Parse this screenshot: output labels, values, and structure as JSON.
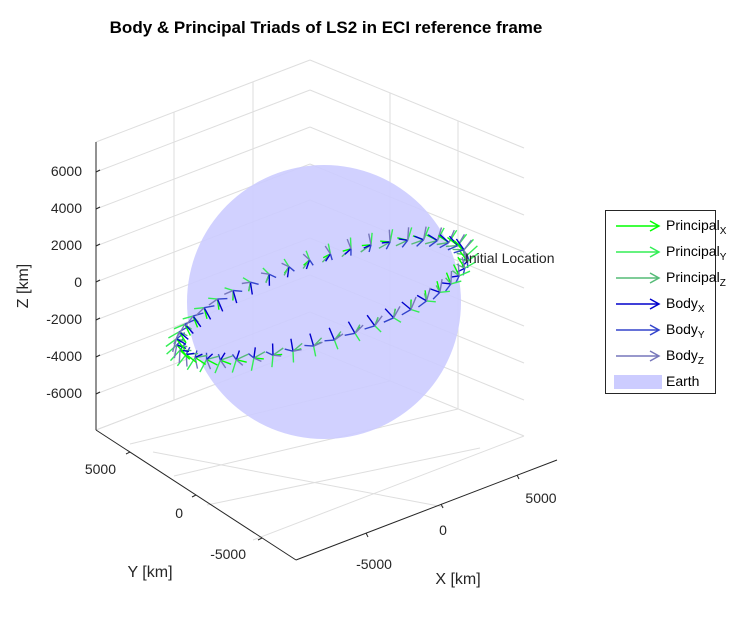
{
  "chart_data": {
    "type": "3d-quiver",
    "title": "Body & Principal Triads of LS2 in ECI reference frame",
    "xlabel": "X [km]",
    "ylabel": "Y [km]",
    "zlabel": "Z [km]",
    "x_ticks": [
      "-5000",
      "0",
      "5000"
    ],
    "y_ticks": [
      "5000",
      "0",
      "-5000"
    ],
    "z_ticks": [
      "6000",
      "4000",
      "2000",
      "0",
      "-2000",
      "-4000",
      "-6000"
    ],
    "annotation": "Initial Location",
    "grid": true,
    "legend_position": "right",
    "series": [
      {
        "name": "Principal",
        "sub": "X",
        "color": "#00ff00"
      },
      {
        "name": "Principal",
        "sub": "Y",
        "color": "#33ee55"
      },
      {
        "name": "Principal",
        "sub": "Z",
        "color": "#55bb77"
      },
      {
        "name": "Body",
        "sub": "X",
        "color": "#0000cc"
      },
      {
        "name": "Body",
        "sub": "Y",
        "color": "#3344cc"
      },
      {
        "name": "Body",
        "sub": "Z",
        "color": "#7777bb"
      },
      {
        "name": "Earth",
        "sub": "",
        "color": "#ccccff"
      }
    ],
    "earth_radius_km": 6378
  }
}
